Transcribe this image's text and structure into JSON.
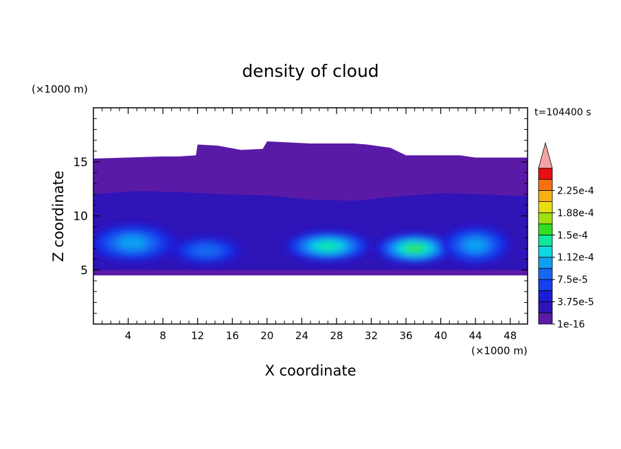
{
  "chart_data": {
    "type": "heatmap",
    "title": "density of cloud",
    "xlabel": "X coordinate",
    "ylabel": "Z coordinate",
    "x_unit": "(×1000 m)",
    "y_unit": "(×1000 m)",
    "time_label": "t=104400 s",
    "xlim": [
      0,
      50
    ],
    "ylim": [
      0,
      20
    ],
    "x_ticks": [
      4,
      8,
      12,
      16,
      20,
      24,
      28,
      32,
      36,
      40,
      44,
      48
    ],
    "y_ticks": [
      5,
      10,
      15
    ],
    "colorbar": {
      "labels": [
        "1e-16",
        "3.75e-5",
        "7.5e-5",
        "1.12e-4",
        "1.5e-4",
        "1.88e-4",
        "2.25e-4"
      ],
      "levels": [
        1e-16,
        1.875e-05,
        3.75e-05,
        5.625e-05,
        7.5e-05,
        9.375e-05,
        0.000112,
        0.000131,
        0.00015,
        0.000169,
        0.000188,
        0.000206,
        0.000225,
        0.000244
      ],
      "colors": [
        "#5a1aa6",
        "#2f14b8",
        "#1c1cd8",
        "#1440ee",
        "#1468f2",
        "#10a0f2",
        "#10d8e0",
        "#10e8a0",
        "#30e020",
        "#a0e010",
        "#e8e010",
        "#f8b010",
        "#f87010",
        "#e81010"
      ],
      "extend_color": "#f4a4a4"
    },
    "regions": [
      {
        "level": 1e-16,
        "top": [
          [
            0,
            15.3
          ],
          [
            8,
            15.5
          ],
          [
            9.8,
            15.5
          ],
          [
            11.8,
            15.6
          ],
          [
            12,
            16.6
          ],
          [
            14.3,
            16.5
          ],
          [
            17,
            16.1
          ],
          [
            19.5,
            16.2
          ],
          [
            20,
            16.9
          ],
          [
            25,
            16.7
          ],
          [
            30,
            16.7
          ],
          [
            31.5,
            16.6
          ],
          [
            34.2,
            16.3
          ],
          [
            36,
            15.6
          ],
          [
            42.2,
            15.6
          ],
          [
            44,
            15.4
          ],
          [
            50,
            15.4
          ]
        ],
        "bottom_y": 4.5
      },
      {
        "level": 1.875e-05,
        "top": [
          [
            0,
            12
          ],
          [
            5,
            12.3
          ],
          [
            10,
            12.2
          ],
          [
            15,
            12
          ],
          [
            20,
            11.9
          ],
          [
            25,
            11.5
          ],
          [
            30,
            11.4
          ],
          [
            35,
            11.8
          ],
          [
            40,
            12.1
          ],
          [
            45,
            12
          ],
          [
            50,
            11.8
          ]
        ],
        "bottom_y": 5
      }
    ],
    "cores": [
      {
        "x": 4.5,
        "z": 7.5,
        "width": 10,
        "height": 3.5,
        "peak": 9.4e-05
      },
      {
        "x": 13,
        "z": 6.8,
        "width": 8,
        "height": 2.5,
        "peak": 7.5e-05
      },
      {
        "x": 27,
        "z": 7.2,
        "width": 10,
        "height": 2.8,
        "peak": 0.000131
      },
      {
        "x": 37,
        "z": 7.0,
        "width": 9,
        "height": 2.8,
        "peak": 0.00015
      },
      {
        "x": 44,
        "z": 7.3,
        "width": 8,
        "height": 3.5,
        "peak": 9.4e-05
      }
    ]
  }
}
